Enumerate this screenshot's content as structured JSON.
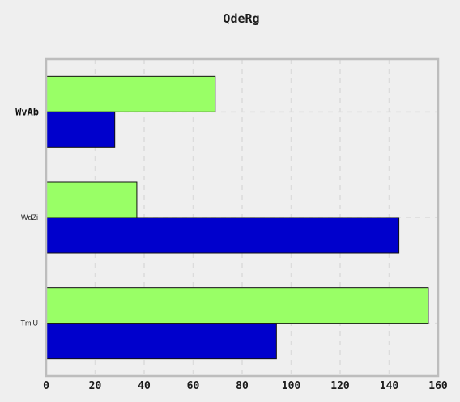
{
  "chart_data": {
    "type": "bar",
    "orientation": "horizontal",
    "title": "QdeRg",
    "xlabel": "",
    "ylabel": "",
    "categories": [
      "WvAb",
      "WdZi",
      "TmiU"
    ],
    "series": [
      {
        "color": "#99ff66",
        "values": [
          69,
          37,
          156
        ]
      },
      {
        "color": "#0000cc",
        "values": [
          28,
          144,
          94
        ]
      }
    ],
    "xlim": [
      0,
      160
    ],
    "xticks": [
      "0",
      "20",
      "40",
      "60",
      "80",
      "100",
      "120",
      "140",
      "160"
    ],
    "grid": true,
    "legend": "none",
    "colors": {
      "background": "#efefef",
      "frame": "#bdbdbd",
      "grid": "#dcdcdc",
      "bar_edge": "#111111"
    }
  }
}
